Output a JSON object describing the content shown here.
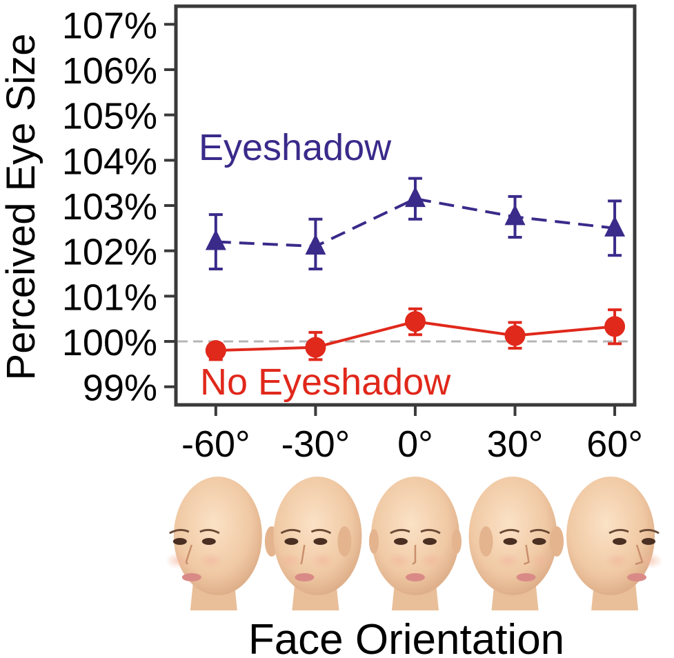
{
  "chart_data": {
    "type": "line",
    "xlabel": "Face Orientation",
    "ylabel": "Perceived Eye Size",
    "x_tick_labels": [
      "-60°",
      "-30°",
      "0°",
      "30°",
      "60°"
    ],
    "x": [
      -60,
      -30,
      0,
      30,
      60
    ],
    "y_tick_labels": [
      "99%",
      "100%",
      "101%",
      "102%",
      "103%",
      "104%",
      "105%",
      "106%",
      "107%"
    ],
    "y_ticks": [
      99,
      100,
      101,
      102,
      103,
      104,
      105,
      106,
      107
    ],
    "xlim": [
      -72,
      66
    ],
    "ylim": [
      98.6,
      107.4
    ],
    "reference_line": 100,
    "grid": false,
    "series": [
      {
        "name": "Eyeshadow",
        "color": "#3a2a8a",
        "marker": "triangle",
        "line_style": "dashed",
        "values": [
          102.2,
          102.1,
          103.15,
          102.75,
          102.5
        ],
        "error_low": [
          101.6,
          101.6,
          102.7,
          102.3,
          101.9
        ],
        "error_high": [
          102.8,
          102.7,
          103.6,
          103.2,
          103.1
        ]
      },
      {
        "name": "No Eyeshadow",
        "color": "#e0281b",
        "marker": "circle",
        "line_style": "solid",
        "values": [
          99.8,
          99.87,
          100.44,
          100.13,
          100.33
        ],
        "error_low": [
          99.6,
          99.6,
          100.15,
          99.85,
          99.95
        ],
        "error_high": [
          99.95,
          100.2,
          100.72,
          100.42,
          100.7
        ]
      }
    ],
    "face_images": [
      "face-left-60",
      "face-left-30",
      "face-frontal",
      "face-right-30",
      "face-right-60"
    ]
  }
}
